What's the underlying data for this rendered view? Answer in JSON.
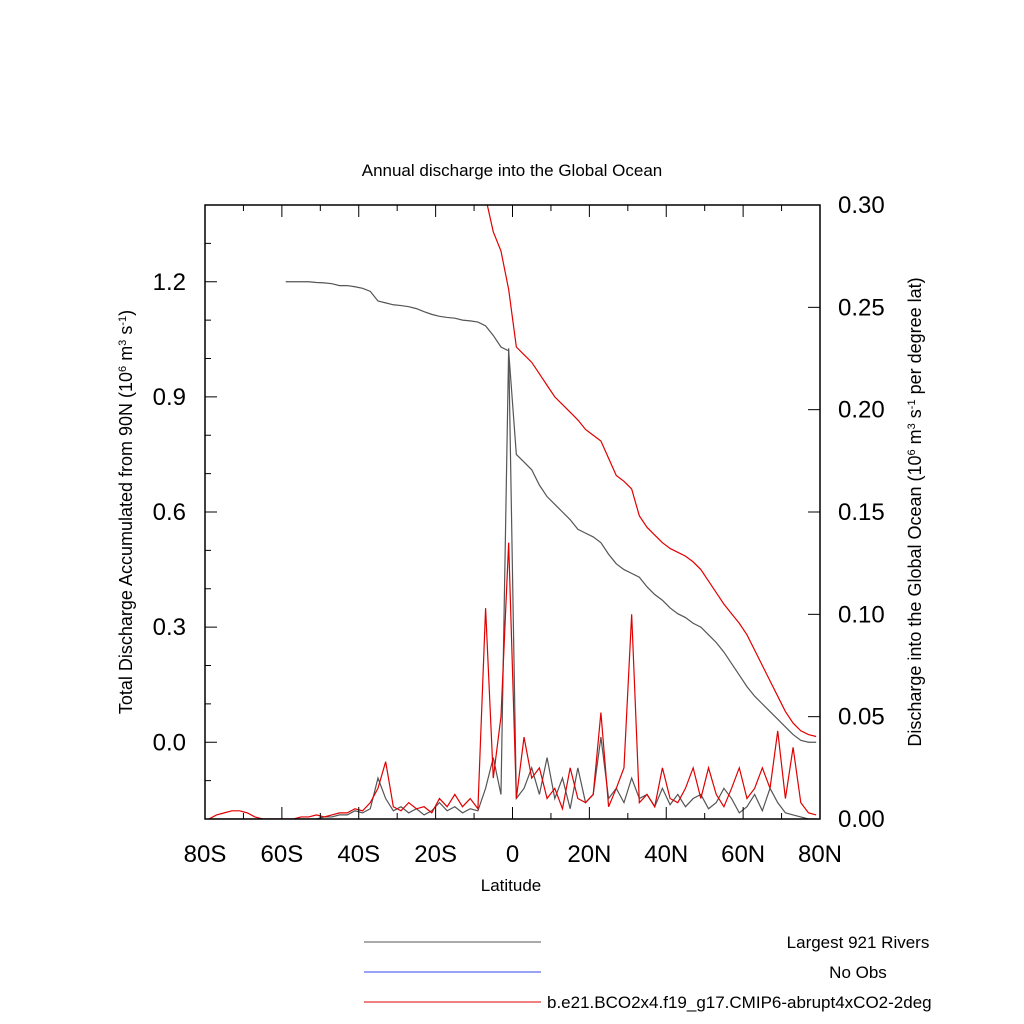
{
  "chart_data": {
    "type": "line",
    "title": "Annual discharge into the Global Ocean",
    "xlabel": "Latitude",
    "ylabel_parts": [
      "Total Discharge Accumulated from 90N (10",
      "6",
      " m",
      "3",
      " s",
      "-1",
      ")"
    ],
    "y2label_parts": [
      "Discharge into the Global Ocean (10",
      "6",
      " m",
      "3",
      " s",
      "-1",
      " per degree lat)"
    ],
    "x": [
      -79,
      -77,
      -75,
      -73,
      -71,
      -69,
      -67,
      -65,
      -63,
      -61,
      -59,
      -57,
      -55,
      -53,
      -51,
      -49,
      -47,
      -45,
      -43,
      -41,
      -39,
      -37,
      -35,
      -33,
      -31,
      -29,
      -27,
      -25,
      -23,
      -21,
      -19,
      -17,
      -15,
      -13,
      -11,
      -9,
      -7,
      -5,
      -3,
      -1,
      1,
      3,
      5,
      7,
      9,
      11,
      13,
      15,
      17,
      19,
      21,
      23,
      25,
      27,
      29,
      31,
      33,
      35,
      37,
      39,
      41,
      43,
      45,
      47,
      49,
      51,
      53,
      55,
      57,
      59,
      61,
      63,
      65,
      67,
      69,
      71,
      73,
      75,
      77,
      79
    ],
    "xlim": [
      -80,
      80
    ],
    "xticks": [
      {
        "value": -80,
        "label": "80S"
      },
      {
        "value": -60,
        "label": "60S"
      },
      {
        "value": -40,
        "label": "40S"
      },
      {
        "value": -20,
        "label": "20S"
      },
      0,
      {
        "value": 20,
        "label": "20N"
      },
      {
        "value": 40,
        "label": "40N"
      },
      {
        "value": 60,
        "label": "60N"
      },
      {
        "value": 80,
        "label": "80N"
      }
    ],
    "xminorticks": [
      -70,
      -50,
      -30,
      -10,
      10,
      30,
      50,
      70
    ],
    "ylim": [
      -0.2,
      1.4
    ],
    "yticks": [
      {
        "value": 0,
        "label": "0.0"
      },
      {
        "value": 0.3,
        "label": "0.3"
      },
      {
        "value": 0.6,
        "label": "0.6"
      },
      {
        "value": 0.9,
        "label": "0.9"
      },
      {
        "value": 1.2,
        "label": "1.2"
      }
    ],
    "yminorticks": [
      -0.1,
      0.1,
      0.2,
      0.4,
      0.5,
      0.7,
      0.8,
      1.0,
      1.1,
      1.3
    ],
    "y2lim": [
      0,
      0.3
    ],
    "y2ticks": [
      {
        "value": 0,
        "label": "0.00"
      },
      {
        "value": 0.05,
        "label": "0.05"
      },
      {
        "value": 0.1,
        "label": "0.10"
      },
      {
        "value": 0.15,
        "label": "0.15"
      },
      {
        "value": 0.2,
        "label": "0.20"
      },
      {
        "value": 0.25,
        "label": "0.25"
      },
      {
        "value": 0.3,
        "label": "0.30"
      }
    ],
    "series": [
      {
        "color": "#555555",
        "axis": "y",
        "values": [
          null,
          null,
          null,
          null,
          null,
          null,
          null,
          null,
          null,
          null,
          1.2,
          1.2,
          1.2,
          1.2,
          1.198,
          1.197,
          1.195,
          1.19,
          1.19,
          1.187,
          1.183,
          1.175,
          1.15,
          1.145,
          1.14,
          1.138,
          1.135,
          1.13,
          1.122,
          1.115,
          1.11,
          1.107,
          1.105,
          1.1,
          1.098,
          1.095,
          1.085,
          1.06,
          1.03,
          1.02,
          0.75,
          0.73,
          0.71,
          0.67,
          0.64,
          0.62,
          0.6,
          0.58,
          0.555,
          0.545,
          0.535,
          0.52,
          0.49,
          0.465,
          0.45,
          0.44,
          0.43,
          0.405,
          0.385,
          0.37,
          0.35,
          0.335,
          0.325,
          0.31,
          0.3,
          0.28,
          0.26,
          0.235,
          0.205,
          0.175,
          0.145,
          0.12,
          0.1,
          0.08,
          0.06,
          0.04,
          0.02,
          0.005,
          0.0,
          0.0
        ]
      },
      {
        "color": "#e00000",
        "axis": "y",
        "values": [
          null,
          null,
          null,
          null,
          null,
          null,
          null,
          null,
          null,
          null,
          null,
          null,
          null,
          null,
          null,
          null,
          null,
          null,
          null,
          null,
          null,
          null,
          null,
          null,
          null,
          null,
          null,
          null,
          null,
          null,
          null,
          null,
          null,
          null,
          null,
          null,
          1.42,
          1.33,
          1.28,
          1.18,
          1.03,
          1.01,
          0.99,
          0.96,
          0.93,
          0.9,
          0.88,
          0.86,
          0.84,
          0.815,
          0.8,
          0.785,
          0.74,
          0.695,
          0.68,
          0.66,
          0.59,
          0.56,
          0.54,
          0.52,
          0.505,
          0.495,
          0.485,
          0.47,
          0.45,
          0.42,
          0.39,
          0.36,
          0.335,
          0.31,
          0.28,
          0.24,
          0.2,
          0.16,
          0.12,
          0.08,
          0.05,
          0.03,
          0.02,
          0.015
        ]
      },
      {
        "color": "#555555",
        "axis": "y2",
        "values": [
          0,
          0,
          0,
          0,
          0,
          0,
          0,
          0,
          0,
          0,
          0,
          0,
          0,
          0,
          0,
          0.001,
          0.001,
          0.002,
          0.002,
          0.004,
          0.003,
          0.005,
          0.02,
          0.01,
          0.004,
          0.006,
          0.003,
          0.005,
          0.002,
          0.004,
          0.008,
          0.004,
          0.006,
          0.003,
          0.005,
          0.004,
          0.015,
          0.03,
          0.012,
          0.23,
          0.01,
          0.015,
          0.025,
          0.012,
          0.03,
          0.01,
          0.02,
          0.005,
          0.025,
          0.008,
          0.012,
          0.04,
          0.01,
          0.015,
          0.008,
          0.02,
          0.01,
          0.012,
          0.006,
          0.015,
          0.007,
          0.012,
          0.006,
          0.01,
          0.012,
          0.005,
          0.008,
          0.015,
          0.01,
          0.003,
          0.006,
          0.012,
          0.004,
          0.015,
          0.008,
          0.003,
          0.002,
          0.001,
          0.0,
          0.0
        ]
      },
      {
        "color": "#e00000",
        "axis": "y2",
        "values": [
          0,
          0.002,
          0.003,
          0.004,
          0.004,
          0.003,
          0.001,
          0,
          0,
          0,
          0,
          0,
          0.001,
          0.001,
          0.002,
          0.001,
          0.002,
          0.003,
          0.003,
          0.005,
          0.004,
          0.008,
          0.015,
          0.028,
          0.006,
          0.004,
          0.008,
          0.005,
          0.006,
          0.003,
          0.01,
          0.006,
          0.012,
          0.006,
          0.01,
          0.005,
          0.103,
          0.02,
          0.05,
          0.135,
          0.01,
          0.04,
          0.02,
          0.025,
          0.01,
          0.015,
          0.005,
          0.025,
          0.01,
          0.008,
          0.012,
          0.052,
          0.006,
          0.015,
          0.025,
          0.1,
          0.008,
          0.012,
          0.006,
          0.025,
          0.01,
          0.008,
          0.015,
          0.025,
          0.01,
          0.025,
          0.012,
          0.006,
          0.015,
          0.025,
          0.01,
          0.015,
          0.025,
          0.015,
          0.043,
          0.01,
          0.035,
          0.008,
          0.003,
          0.002
        ]
      }
    ],
    "legend": [
      {
        "name": "Largest 921 Rivers",
        "color": "#555555"
      },
      {
        "name": "No Obs",
        "color": "#3344ee"
      },
      {
        "name": "b.e21.BCO2x4.f19_g17.CMIP6-abrupt4xCO2-2deg",
        "color": "#e00000"
      }
    ]
  }
}
